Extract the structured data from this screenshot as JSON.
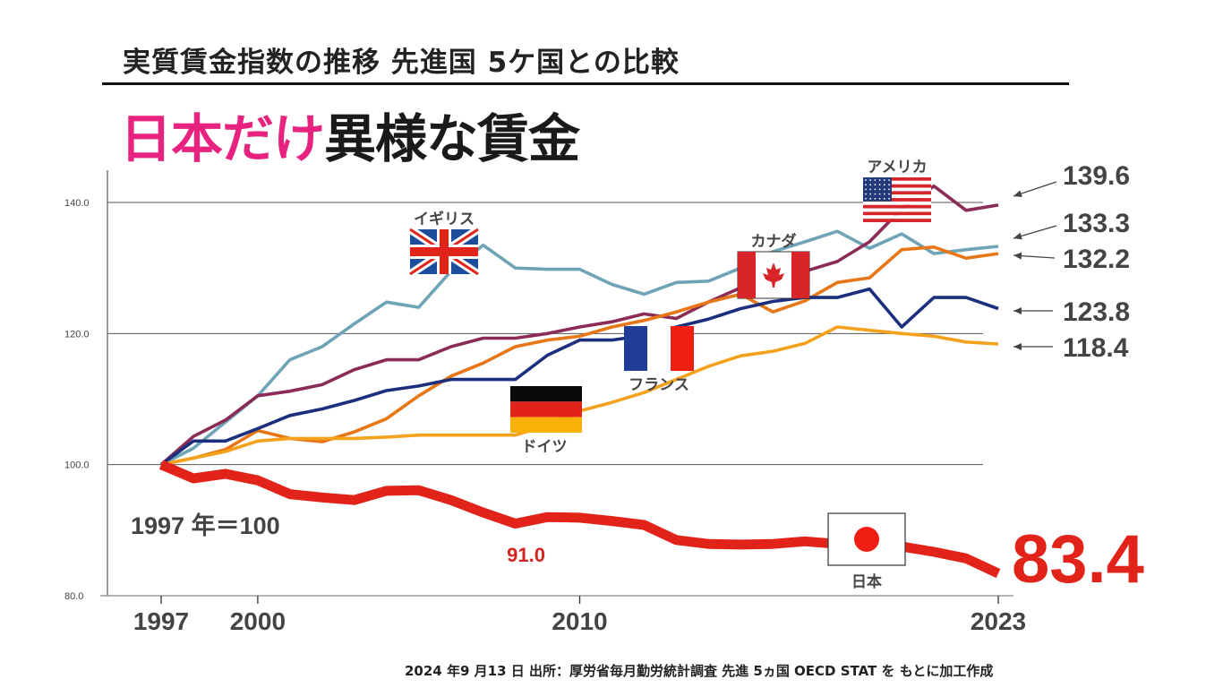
{
  "header": {
    "subtitle": "実質賃金指数の推移 先進国 5ケ国との比較",
    "headline_highlight": "日本だけ",
    "headline_rest": "異様な賃金"
  },
  "footer": {
    "source": "2024 年9 月13 日  出所：厚労省毎月勤労統計調査  先進 5ヵ国 OECD STAT を もとに加工作成"
  },
  "chart_data": {
    "type": "line",
    "title": "実質賃金指数の推移 先進国 5ケ国との比較",
    "subtitle": "日本だけ異様な賃金",
    "xlabel": "",
    "ylabel": "",
    "base_note": "1997 年＝100",
    "xlim": [
      1997,
      2023
    ],
    "ylim": [
      80,
      140
    ],
    "grid": true,
    "x_ticks": [
      1997,
      2000,
      2010,
      2023
    ],
    "x_tick_labels": [
      "1997",
      "2000",
      "2010",
      "2023"
    ],
    "y_ticks": [
      80,
      100,
      120,
      140
    ],
    "y_tick_labels": [
      "80.0",
      "100.0",
      "120.0",
      "140.0"
    ],
    "x": [
      1997,
      1998,
      1999,
      2000,
      2001,
      2002,
      2003,
      2004,
      2005,
      2006,
      2007,
      2008,
      2009,
      2010,
      2011,
      2012,
      2013,
      2014,
      2015,
      2016,
      2017,
      2018,
      2019,
      2020,
      2021,
      2022,
      2023
    ],
    "series": [
      {
        "name": "イギリス",
        "key": "uk",
        "color": "#6fa3b6",
        "values": [
          100,
          102.5,
          106.5,
          110.5,
          116,
          118,
          121.5,
          124.8,
          124,
          129.5,
          133.5,
          130,
          129.8,
          129.8,
          127.5,
          126,
          127.8,
          128,
          130,
          132.5,
          134,
          135.6,
          133,
          135.2,
          132.2,
          132.8,
          133.3
        ]
      },
      {
        "name": "アメリカ",
        "key": "us",
        "color": "#8a2c55",
        "values": [
          100,
          104.3,
          106.8,
          110.5,
          111.2,
          112.2,
          114.5,
          116,
          116,
          118,
          119.3,
          119.3,
          120,
          121,
          121.8,
          123,
          122.3,
          124.8,
          127,
          128,
          129.5,
          131,
          134,
          139,
          142.5,
          138.8,
          139.6
        ]
      },
      {
        "name": "カナダ",
        "key": "ca",
        "color": "#e77616",
        "values": [
          100,
          101,
          102.3,
          105.2,
          104,
          103.5,
          105,
          107,
          110.5,
          113.5,
          115.5,
          118,
          119,
          119.6,
          121,
          122,
          123.3,
          124.8,
          126,
          123.3,
          125,
          127.8,
          128.5,
          132.8,
          133.2,
          131.5,
          132.2
        ]
      },
      {
        "name": "フランス",
        "key": "fr",
        "color": "#1c2f7e",
        "values": [
          100,
          103.6,
          103.6,
          105.5,
          107.5,
          108.5,
          109.8,
          111.3,
          112,
          113,
          113,
          113,
          116.7,
          119,
          119,
          119.7,
          121,
          122.2,
          123.8,
          124.9,
          125.5,
          125.5,
          126.8,
          121,
          125.5,
          125.5,
          123.8
        ]
      },
      {
        "name": "ドイツ",
        "key": "de",
        "color": "#f4a11c",
        "values": [
          100,
          101,
          102,
          103.6,
          104,
          104,
          104,
          104.2,
          104.5,
          104.5,
          104.5,
          104.5,
          106,
          108.2,
          109.5,
          111,
          113,
          115,
          116.6,
          117.3,
          118.5,
          121,
          120.5,
          120,
          119.6,
          118.7,
          118.4
        ]
      },
      {
        "name": "日本",
        "key": "jp",
        "color": "#e2231a",
        "values": [
          100,
          97.9,
          98.6,
          97.6,
          95.5,
          95.0,
          94.6,
          96.0,
          96.1,
          94.6,
          92.7,
          91.0,
          92.0,
          91.9,
          91.4,
          90.8,
          88.5,
          87.9,
          87.8,
          87.9,
          88.3,
          87.9,
          86.7,
          87.5,
          86.7,
          85.7,
          83.4
        ]
      }
    ],
    "end_labels": [
      {
        "series": "us",
        "text": "139.6"
      },
      {
        "series": "uk",
        "text": "133.3"
      },
      {
        "series": "ca",
        "text": "132.2"
      },
      {
        "series": "fr",
        "text": "123.8"
      },
      {
        "series": "de",
        "text": "118.4"
      },
      {
        "series": "jp",
        "text": "83.4"
      }
    ],
    "annotations": [
      {
        "text": "91.0",
        "series": "jp",
        "x": 2008
      }
    ],
    "country_labels": [
      {
        "key": "uk",
        "text": "イギリス",
        "flag": "uk-flag"
      },
      {
        "key": "us",
        "text": "アメリカ",
        "flag": "us-flag"
      },
      {
        "key": "ca",
        "text": "カナダ",
        "flag": "canada-flag"
      },
      {
        "key": "fr",
        "text": "フランス",
        "flag": "france-flag"
      },
      {
        "key": "de",
        "text": "ドイツ",
        "flag": "germany-flag"
      },
      {
        "key": "jp",
        "text": "日本",
        "flag": "japan-flag"
      }
    ]
  }
}
